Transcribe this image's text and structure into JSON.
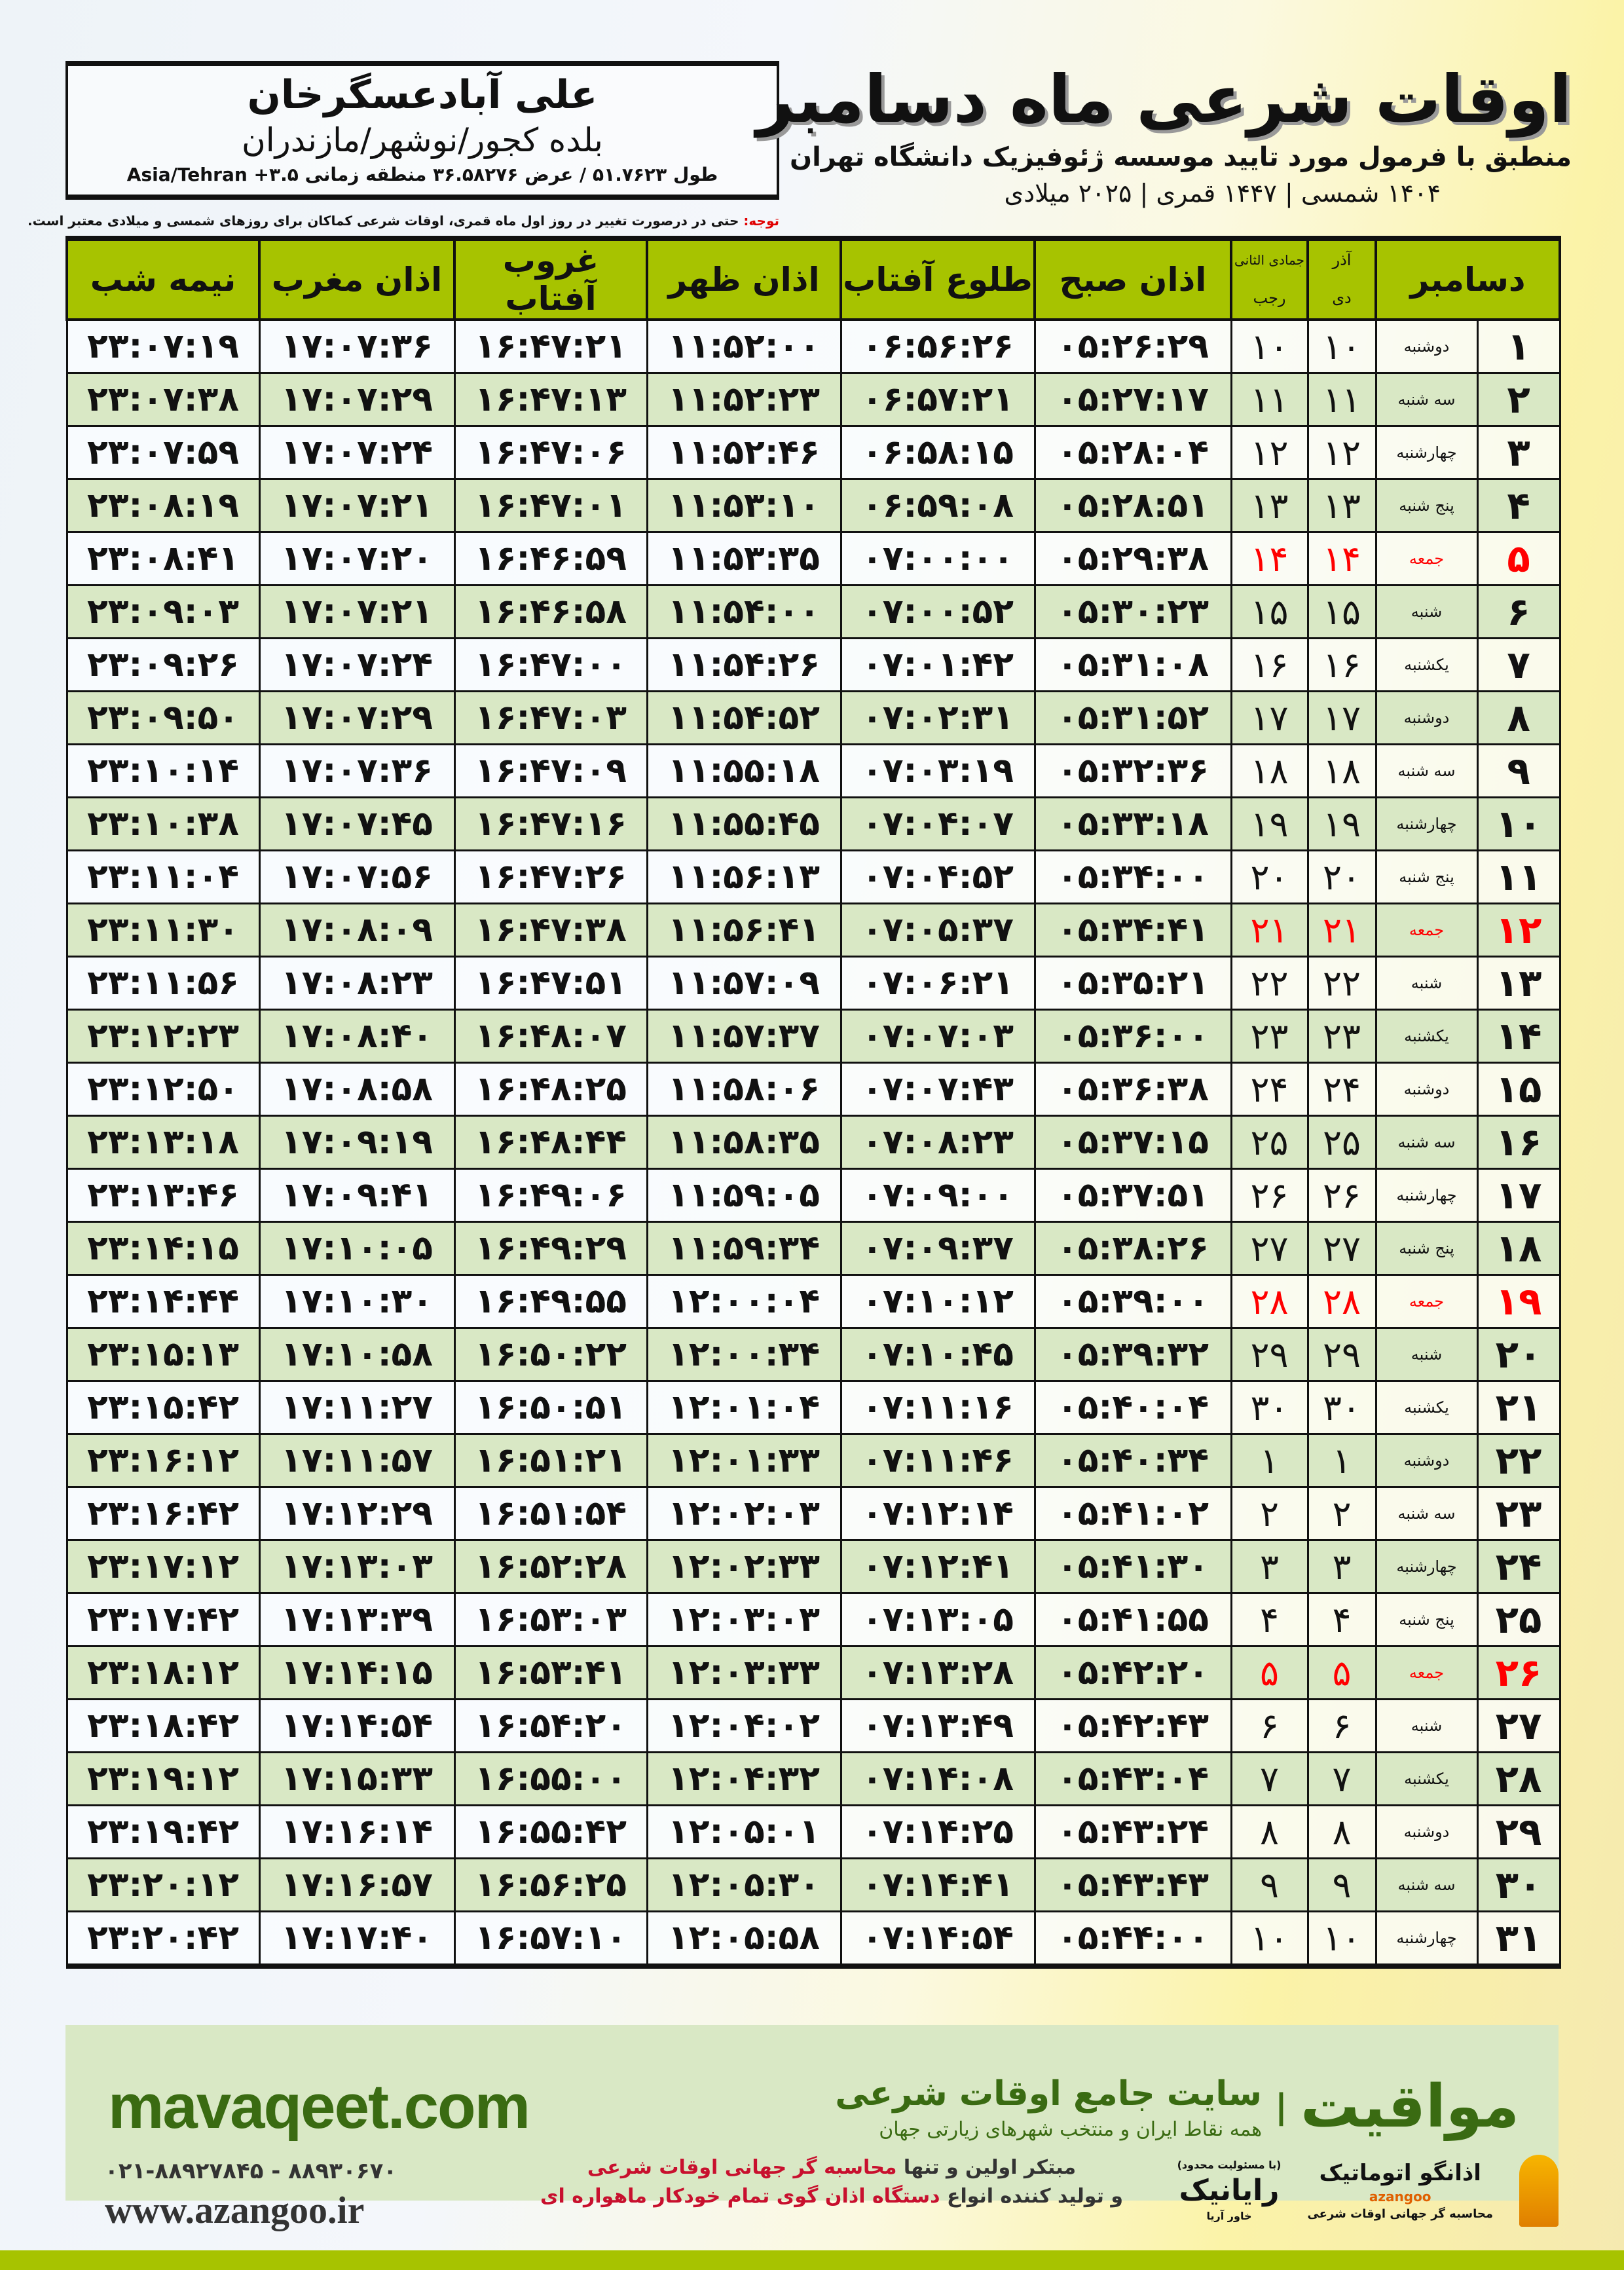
{
  "info": {
    "city": "علی آبادعسگرخان",
    "region": "بلده کجور/نوشهر/مازندران",
    "coords": "طول ۵۱.۷۶۲۳ / عرض ۳۶.۵۸۲۷۶ منطقه زمانی ۳.۵+ Asia/Tehran"
  },
  "title": {
    "main": "اوقات شرعی ماه دسامبر",
    "subtitle": "منطبق با فرمول مورد تایید موسسه ژئوفیزیک دانشگاه تهران",
    "years": "۱۴۰۴ شمسی | ۱۴۴۷ قمری | ۲۰۲۵ میلادی"
  },
  "note": {
    "label": "توجه:",
    "text": " حتی در درصورت تغییر در روز اول ماه قمری، اوقات شرعی کماکان برای روزهای شمسی و میلادی معتبر است."
  },
  "colors": {
    "header": "#a7c300",
    "even_row": "#d9e8c5",
    "friday": "#ff0000",
    "brand": "#3a6b12"
  },
  "table": {
    "headers": {
      "month": "دسامبر",
      "shamsi_top": "آذر",
      "shamsi_bottom": "دی",
      "hijri_top": "جمادی الثانی",
      "hijri_bottom": "رجب",
      "fajr": "اذان صبح",
      "sunrise": "طلوع آفتاب",
      "dhuhr": "اذان ظهر",
      "sunset": "غروب آفتاب",
      "maghrib": "اذان مغرب",
      "midnight": "نیمه شب"
    },
    "rows": [
      {
        "day": "۱",
        "weekday": "دوشنبه",
        "shamsi": "۱۰",
        "hijri": "۱۰",
        "fajr": "۰۵:۲۶:۲۹",
        "sunrise": "۰۶:۵۶:۲۶",
        "dhuhr": "۱۱:۵۲:۰۰",
        "sunset": "۱۶:۴۷:۲۱",
        "maghrib": "۱۷:۰۷:۳۶",
        "midnight": "۲۳:۰۷:۱۹"
      },
      {
        "day": "۲",
        "weekday": "سه شنبه",
        "shamsi": "۱۱",
        "hijri": "۱۱",
        "fajr": "۰۵:۲۷:۱۷",
        "sunrise": "۰۶:۵۷:۲۱",
        "dhuhr": "۱۱:۵۲:۲۳",
        "sunset": "۱۶:۴۷:۱۳",
        "maghrib": "۱۷:۰۷:۲۹",
        "midnight": "۲۳:۰۷:۳۸"
      },
      {
        "day": "۳",
        "weekday": "چهارشنبه",
        "shamsi": "۱۲",
        "hijri": "۱۲",
        "fajr": "۰۵:۲۸:۰۴",
        "sunrise": "۰۶:۵۸:۱۵",
        "dhuhr": "۱۱:۵۲:۴۶",
        "sunset": "۱۶:۴۷:۰۶",
        "maghrib": "۱۷:۰۷:۲۴",
        "midnight": "۲۳:۰۷:۵۹"
      },
      {
        "day": "۴",
        "weekday": "پنج شنبه",
        "shamsi": "۱۳",
        "hijri": "۱۳",
        "fajr": "۰۵:۲۸:۵۱",
        "sunrise": "۰۶:۵۹:۰۸",
        "dhuhr": "۱۱:۵۳:۱۰",
        "sunset": "۱۶:۴۷:۰۱",
        "maghrib": "۱۷:۰۷:۲۱",
        "midnight": "۲۳:۰۸:۱۹"
      },
      {
        "day": "۵",
        "weekday": "جمعه",
        "friday": true,
        "shamsi": "۱۴",
        "hijri": "۱۴",
        "fajr": "۰۵:۲۹:۳۸",
        "sunrise": "۰۷:۰۰:۰۰",
        "dhuhr": "۱۱:۵۳:۳۵",
        "sunset": "۱۶:۴۶:۵۹",
        "maghrib": "۱۷:۰۷:۲۰",
        "midnight": "۲۳:۰۸:۴۱"
      },
      {
        "day": "۶",
        "weekday": "شنبه",
        "shamsi": "۱۵",
        "hijri": "۱۵",
        "fajr": "۰۵:۳۰:۲۳",
        "sunrise": "۰۷:۰۰:۵۲",
        "dhuhr": "۱۱:۵۴:۰۰",
        "sunset": "۱۶:۴۶:۵۸",
        "maghrib": "۱۷:۰۷:۲۱",
        "midnight": "۲۳:۰۹:۰۳"
      },
      {
        "day": "۷",
        "weekday": "یکشنبه",
        "shamsi": "۱۶",
        "hijri": "۱۶",
        "fajr": "۰۵:۳۱:۰۸",
        "sunrise": "۰۷:۰۱:۴۲",
        "dhuhr": "۱۱:۵۴:۲۶",
        "sunset": "۱۶:۴۷:۰۰",
        "maghrib": "۱۷:۰۷:۲۴",
        "midnight": "۲۳:۰۹:۲۶"
      },
      {
        "day": "۸",
        "weekday": "دوشنبه",
        "shamsi": "۱۷",
        "hijri": "۱۷",
        "fajr": "۰۵:۳۱:۵۲",
        "sunrise": "۰۷:۰۲:۳۱",
        "dhuhr": "۱۱:۵۴:۵۲",
        "sunset": "۱۶:۴۷:۰۳",
        "maghrib": "۱۷:۰۷:۲۹",
        "midnight": "۲۳:۰۹:۵۰"
      },
      {
        "day": "۹",
        "weekday": "سه شنبه",
        "shamsi": "۱۸",
        "hijri": "۱۸",
        "fajr": "۰۵:۳۲:۳۶",
        "sunrise": "۰۷:۰۳:۱۹",
        "dhuhr": "۱۱:۵۵:۱۸",
        "sunset": "۱۶:۴۷:۰۹",
        "maghrib": "۱۷:۰۷:۳۶",
        "midnight": "۲۳:۱۰:۱۴"
      },
      {
        "day": "۱۰",
        "weekday": "چهارشنبه",
        "shamsi": "۱۹",
        "hijri": "۱۹",
        "fajr": "۰۵:۳۳:۱۸",
        "sunrise": "۰۷:۰۴:۰۷",
        "dhuhr": "۱۱:۵۵:۴۵",
        "sunset": "۱۶:۴۷:۱۶",
        "maghrib": "۱۷:۰۷:۴۵",
        "midnight": "۲۳:۱۰:۳۸"
      },
      {
        "day": "۱۱",
        "weekday": "پنج شنبه",
        "shamsi": "۲۰",
        "hijri": "۲۰",
        "fajr": "۰۵:۳۴:۰۰",
        "sunrise": "۰۷:۰۴:۵۲",
        "dhuhr": "۱۱:۵۶:۱۳",
        "sunset": "۱۶:۴۷:۲۶",
        "maghrib": "۱۷:۰۷:۵۶",
        "midnight": "۲۳:۱۱:۰۴"
      },
      {
        "day": "۱۲",
        "weekday": "جمعه",
        "friday": true,
        "shamsi": "۲۱",
        "hijri": "۲۱",
        "fajr": "۰۵:۳۴:۴۱",
        "sunrise": "۰۷:۰۵:۳۷",
        "dhuhr": "۱۱:۵۶:۴۱",
        "sunset": "۱۶:۴۷:۳۸",
        "maghrib": "۱۷:۰۸:۰۹",
        "midnight": "۲۳:۱۱:۳۰"
      },
      {
        "day": "۱۳",
        "weekday": "شنبه",
        "shamsi": "۲۲",
        "hijri": "۲۲",
        "fajr": "۰۵:۳۵:۲۱",
        "sunrise": "۰۷:۰۶:۲۱",
        "dhuhr": "۱۱:۵۷:۰۹",
        "sunset": "۱۶:۴۷:۵۱",
        "maghrib": "۱۷:۰۸:۲۳",
        "midnight": "۲۳:۱۱:۵۶"
      },
      {
        "day": "۱۴",
        "weekday": "یکشنبه",
        "shamsi": "۲۳",
        "hijri": "۲۳",
        "fajr": "۰۵:۳۶:۰۰",
        "sunrise": "۰۷:۰۷:۰۳",
        "dhuhr": "۱۱:۵۷:۳۷",
        "sunset": "۱۶:۴۸:۰۷",
        "maghrib": "۱۷:۰۸:۴۰",
        "midnight": "۲۳:۱۲:۲۳"
      },
      {
        "day": "۱۵",
        "weekday": "دوشنبه",
        "shamsi": "۲۴",
        "hijri": "۲۴",
        "fajr": "۰۵:۳۶:۳۸",
        "sunrise": "۰۷:۰۷:۴۳",
        "dhuhr": "۱۱:۵۸:۰۶",
        "sunset": "۱۶:۴۸:۲۵",
        "maghrib": "۱۷:۰۸:۵۸",
        "midnight": "۲۳:۱۲:۵۰"
      },
      {
        "day": "۱۶",
        "weekday": "سه شنبه",
        "shamsi": "۲۵",
        "hijri": "۲۵",
        "fajr": "۰۵:۳۷:۱۵",
        "sunrise": "۰۷:۰۸:۲۳",
        "dhuhr": "۱۱:۵۸:۳۵",
        "sunset": "۱۶:۴۸:۴۴",
        "maghrib": "۱۷:۰۹:۱۹",
        "midnight": "۲۳:۱۳:۱۸"
      },
      {
        "day": "۱۷",
        "weekday": "چهارشنبه",
        "shamsi": "۲۶",
        "hijri": "۲۶",
        "fajr": "۰۵:۳۷:۵۱",
        "sunrise": "۰۷:۰۹:۰۰",
        "dhuhr": "۱۱:۵۹:۰۵",
        "sunset": "۱۶:۴۹:۰۶",
        "maghrib": "۱۷:۰۹:۴۱",
        "midnight": "۲۳:۱۳:۴۶"
      },
      {
        "day": "۱۸",
        "weekday": "پنج شنبه",
        "shamsi": "۲۷",
        "hijri": "۲۷",
        "fajr": "۰۵:۳۸:۲۶",
        "sunrise": "۰۷:۰۹:۳۷",
        "dhuhr": "۱۱:۵۹:۳۴",
        "sunset": "۱۶:۴۹:۲۹",
        "maghrib": "۱۷:۱۰:۰۵",
        "midnight": "۲۳:۱۴:۱۵"
      },
      {
        "day": "۱۹",
        "weekday": "جمعه",
        "friday": true,
        "shamsi": "۲۸",
        "hijri": "۲۸",
        "fajr": "۰۵:۳۹:۰۰",
        "sunrise": "۰۷:۱۰:۱۲",
        "dhuhr": "۱۲:۰۰:۰۴",
        "sunset": "۱۶:۴۹:۵۵",
        "maghrib": "۱۷:۱۰:۳۰",
        "midnight": "۲۳:۱۴:۴۴"
      },
      {
        "day": "۲۰",
        "weekday": "شنبه",
        "shamsi": "۲۹",
        "hijri": "۲۹",
        "fajr": "۰۵:۳۹:۳۲",
        "sunrise": "۰۷:۱۰:۴۵",
        "dhuhr": "۱۲:۰۰:۳۴",
        "sunset": "۱۶:۵۰:۲۲",
        "maghrib": "۱۷:۱۰:۵۸",
        "midnight": "۲۳:۱۵:۱۳"
      },
      {
        "day": "۲۱",
        "weekday": "یکشنبه",
        "shamsi": "۳۰",
        "hijri": "۳۰",
        "fajr": "۰۵:۴۰:۰۴",
        "sunrise": "۰۷:۱۱:۱۶",
        "dhuhr": "۱۲:۰۱:۰۴",
        "sunset": "۱۶:۵۰:۵۱",
        "maghrib": "۱۷:۱۱:۲۷",
        "midnight": "۲۳:۱۵:۴۲"
      },
      {
        "day": "۲۲",
        "weekday": "دوشنبه",
        "shamsi": "۱",
        "hijri": "۱",
        "fajr": "۰۵:۴۰:۳۴",
        "sunrise": "۰۷:۱۱:۴۶",
        "dhuhr": "۱۲:۰۱:۳۳",
        "sunset": "۱۶:۵۱:۲۱",
        "maghrib": "۱۷:۱۱:۵۷",
        "midnight": "۲۳:۱۶:۱۲"
      },
      {
        "day": "۲۳",
        "weekday": "سه شنبه",
        "shamsi": "۲",
        "hijri": "۲",
        "fajr": "۰۵:۴۱:۰۲",
        "sunrise": "۰۷:۱۲:۱۴",
        "dhuhr": "۱۲:۰۲:۰۳",
        "sunset": "۱۶:۵۱:۵۴",
        "maghrib": "۱۷:۱۲:۲۹",
        "midnight": "۲۳:۱۶:۴۲"
      },
      {
        "day": "۲۴",
        "weekday": "چهارشنبه",
        "shamsi": "۳",
        "hijri": "۳",
        "fajr": "۰۵:۴۱:۳۰",
        "sunrise": "۰۷:۱۲:۴۱",
        "dhuhr": "۱۲:۰۲:۳۳",
        "sunset": "۱۶:۵۲:۲۸",
        "maghrib": "۱۷:۱۳:۰۳",
        "midnight": "۲۳:۱۷:۱۲"
      },
      {
        "day": "۲۵",
        "weekday": "پنج شنبه",
        "shamsi": "۴",
        "hijri": "۴",
        "fajr": "۰۵:۴۱:۵۵",
        "sunrise": "۰۷:۱۳:۰۵",
        "dhuhr": "۱۲:۰۳:۰۳",
        "sunset": "۱۶:۵۳:۰۳",
        "maghrib": "۱۷:۱۳:۳۹",
        "midnight": "۲۳:۱۷:۴۲"
      },
      {
        "day": "۲۶",
        "weekday": "جمعه",
        "friday": true,
        "shamsi": "۵",
        "hijri": "۵",
        "fajr": "۰۵:۴۲:۲۰",
        "sunrise": "۰۷:۱۳:۲۸",
        "dhuhr": "۱۲:۰۳:۳۳",
        "sunset": "۱۶:۵۳:۴۱",
        "maghrib": "۱۷:۱۴:۱۵",
        "midnight": "۲۳:۱۸:۱۲"
      },
      {
        "day": "۲۷",
        "weekday": "شنبه",
        "shamsi": "۶",
        "hijri": "۶",
        "fajr": "۰۵:۴۲:۴۳",
        "sunrise": "۰۷:۱۳:۴۹",
        "dhuhr": "۱۲:۰۴:۰۲",
        "sunset": "۱۶:۵۴:۲۰",
        "maghrib": "۱۷:۱۴:۵۴",
        "midnight": "۲۳:۱۸:۴۲"
      },
      {
        "day": "۲۸",
        "weekday": "یکشنبه",
        "shamsi": "۷",
        "hijri": "۷",
        "fajr": "۰۵:۴۳:۰۴",
        "sunrise": "۰۷:۱۴:۰۸",
        "dhuhr": "۱۲:۰۴:۳۲",
        "sunset": "۱۶:۵۵:۰۰",
        "maghrib": "۱۷:۱۵:۳۳",
        "midnight": "۲۳:۱۹:۱۲"
      },
      {
        "day": "۲۹",
        "weekday": "دوشنبه",
        "shamsi": "۸",
        "hijri": "۸",
        "fajr": "۰۵:۴۳:۲۴",
        "sunrise": "۰۷:۱۴:۲۵",
        "dhuhr": "۱۲:۰۵:۰۱",
        "sunset": "۱۶:۵۵:۴۲",
        "maghrib": "۱۷:۱۶:۱۴",
        "midnight": "۲۳:۱۹:۴۲"
      },
      {
        "day": "۳۰",
        "weekday": "سه شنبه",
        "shamsi": "۹",
        "hijri": "۹",
        "fajr": "۰۵:۴۳:۴۳",
        "sunrise": "۰۷:۱۴:۴۱",
        "dhuhr": "۱۲:۰۵:۳۰",
        "sunset": "۱۶:۵۶:۲۵",
        "maghrib": "۱۷:۱۶:۵۷",
        "midnight": "۲۳:۲۰:۱۲"
      },
      {
        "day": "۳۱",
        "weekday": "چهارشنبه",
        "shamsi": "۱۰",
        "hijri": "۱۰",
        "fajr": "۰۵:۴۴:۰۰",
        "sunrise": "۰۷:۱۴:۵۴",
        "dhuhr": "۱۲:۰۵:۵۸",
        "sunset": "۱۶:۵۷:۱۰",
        "maghrib": "۱۷:۱۷:۴۰",
        "midnight": "۲۳:۲۰:۴۲"
      }
    ]
  },
  "footer": {
    "site": "mavaqeet.com",
    "brand_name": "مواقیت",
    "brand_tagline": "سایت جامع اوقات شرعی",
    "brand_sub": "همه نقاط ایران و منتخب شهرهای زیارتی جهان",
    "phone": "۰۲۱-۸۸۹۲۷۸۴۵ - ۸۸۹۳۰۶۷۰",
    "web": "www.azangoo.ir",
    "slogan_1a": "مبتکر اولین و تنها ",
    "slogan_1b": "محاسبه گر جهانی اوقات شرعی",
    "slogan_2a": "و تولید کننده انواع ",
    "slogan_2b": "دستگاه اذان گوی تمام خودکار ماهواره ای",
    "logo_azangoo_name": "اذانگو اتوماتیک",
    "logo_azangoo_tag": "محاسبه گر جهانی اوقات شرعی",
    "logo_azangoo_en": "azangoo",
    "logo_rayanik_name": "رایانیک",
    "logo_rayanik_tag": "خاور آریا",
    "logo_rayanik_note": "(با مسئولیت محدود)"
  }
}
